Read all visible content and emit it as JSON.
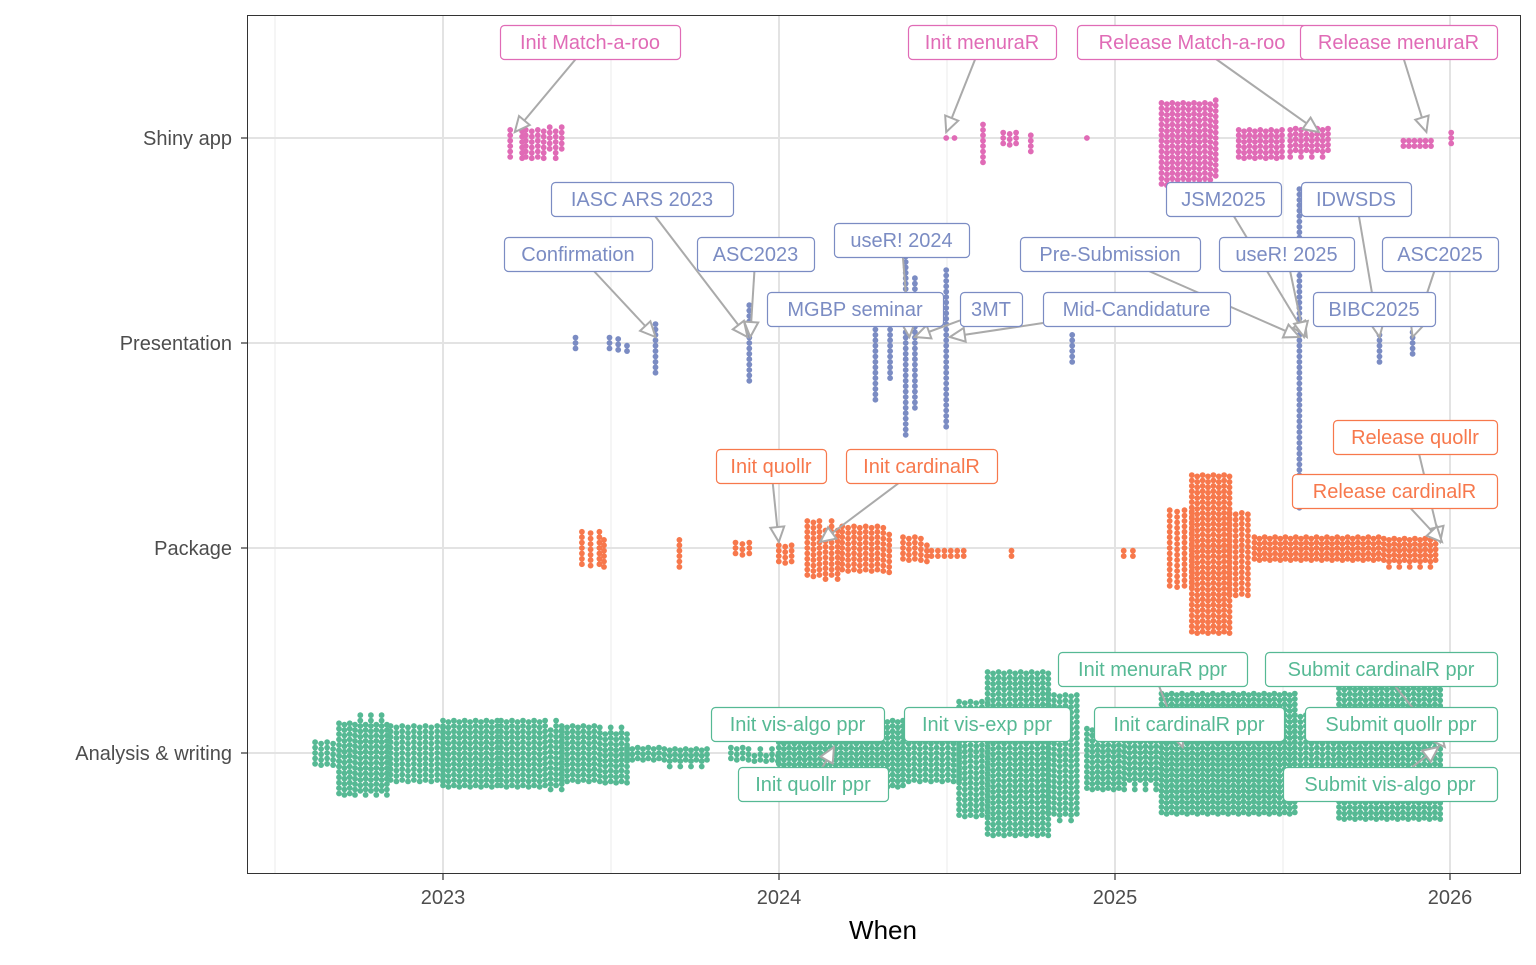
{
  "chart_data": {
    "type": "scatter",
    "subtype": "beeswarm",
    "title": "",
    "xlabel": "When",
    "ylabel": "",
    "x_ticks": [
      "2023",
      "2024",
      "2025",
      "2026"
    ],
    "xlim": [
      "2022-06-15",
      "2026-02-20"
    ],
    "grid": true,
    "legend": "none",
    "categories": [
      "Shiny app",
      "Presentation",
      "Package",
      "Analysis & writing"
    ],
    "colors": {
      "Shiny app": "#E06BB6",
      "Presentation": "#7B8CC3",
      "Package": "#F7784C",
      "Analysis & writing": "#56B994"
    },
    "series": [
      {
        "category": "Shiny app",
        "clusters": [
          {
            "from": "2023-03-15",
            "to": "2023-03-28",
            "count": 12
          },
          {
            "from": "2023-04-01",
            "to": "2023-05-10",
            "count": 40
          },
          {
            "from": "2024-07-01",
            "to": "2024-07-01",
            "count": 1
          },
          {
            "from": "2024-07-10",
            "to": "2024-07-10",
            "count": 1
          },
          {
            "from": "2024-08-10",
            "to": "2024-08-10",
            "count": 8
          },
          {
            "from": "2024-09-01",
            "to": "2024-09-15",
            "count": 9
          },
          {
            "from": "2024-10-01",
            "to": "2024-10-01",
            "count": 4
          },
          {
            "from": "2024-12-01",
            "to": "2024-12-01",
            "count": 1
          },
          {
            "from": "2025-02-20",
            "to": "2025-04-20",
            "count": 175
          },
          {
            "from": "2025-05-15",
            "to": "2025-07-01",
            "count": 54
          },
          {
            "from": "2025-07-10",
            "to": "2025-08-20",
            "count": 44
          },
          {
            "from": "2025-11-10",
            "to": "2025-12-10",
            "count": 12
          },
          {
            "from": "2026-01-01",
            "to": "2026-01-03",
            "count": 3
          }
        ]
      },
      {
        "category": "Presentation",
        "clusters": [
          {
            "from": "2023-05-25",
            "to": "2023-05-25",
            "count": 3
          },
          {
            "from": "2023-07-01",
            "to": "2023-07-20",
            "count": 8
          },
          {
            "from": "2023-08-20",
            "to": "2023-08-24",
            "count": 10
          },
          {
            "from": "2023-11-30",
            "to": "2023-12-02",
            "count": 15
          },
          {
            "from": "2024-04-15",
            "to": "2024-04-15",
            "count": 20
          },
          {
            "from": "2024-05-01",
            "to": "2024-05-01",
            "count": 12
          },
          {
            "from": "2024-05-18",
            "to": "2024-05-22",
            "count": 35
          },
          {
            "from": "2024-05-28",
            "to": "2024-05-30",
            "count": 25
          },
          {
            "from": "2024-07-01",
            "to": "2024-07-03",
            "count": 30
          },
          {
            "from": "2024-11-15",
            "to": "2024-11-15",
            "count": 6
          },
          {
            "from": "2025-07-20",
            "to": "2025-07-28",
            "count": 60
          },
          {
            "from": "2025-10-15",
            "to": "2025-10-15",
            "count": 6
          },
          {
            "from": "2025-11-20",
            "to": "2025-11-20",
            "count": 5
          }
        ]
      },
      {
        "category": "Package",
        "clusters": [
          {
            "from": "2023-06-01",
            "to": "2023-06-20",
            "count": 21
          },
          {
            "from": "2023-06-25",
            "to": "2023-06-28",
            "count": 6
          },
          {
            "from": "2023-09-15",
            "to": "2023-09-20",
            "count": 6
          },
          {
            "from": "2023-11-15",
            "to": "2023-11-30",
            "count": 9
          },
          {
            "from": "2024-01-01",
            "to": "2024-01-15",
            "count": 12
          },
          {
            "from": "2024-02-01",
            "to": "2024-03-05",
            "count": 64
          },
          {
            "from": "2024-03-10",
            "to": "2024-04-30",
            "count": 80
          },
          {
            "from": "2024-05-15",
            "to": "2024-06-10",
            "count": 24
          },
          {
            "from": "2024-06-15",
            "to": "2024-07-20",
            "count": 12
          },
          {
            "from": "2024-09-10",
            "to": "2024-09-10",
            "count": 2
          },
          {
            "from": "2025-01-10",
            "to": "2025-01-20",
            "count": 4
          },
          {
            "from": "2025-03-01",
            "to": "2025-03-25",
            "count": 60
          },
          {
            "from": "2025-03-25",
            "to": "2025-05-05",
            "count": 240
          },
          {
            "from": "2025-05-05",
            "to": "2025-05-25",
            "count": 64
          },
          {
            "from": "2025-06-01",
            "to": "2025-12-15",
            "count": 185
          }
        ]
      },
      {
        "category": "Analysis & writing",
        "clusters": [
          {
            "from": "2022-08-15",
            "to": "2022-09-10",
            "count": 24
          },
          {
            "from": "2022-09-10",
            "to": "2022-11-01",
            "count": 143
          },
          {
            "from": "2022-11-05",
            "to": "2023-01-01",
            "count": 110
          },
          {
            "from": "2023-01-01",
            "to": "2023-03-01",
            "count": 143
          },
          {
            "from": "2023-03-05",
            "to": "2023-05-10",
            "count": 154
          },
          {
            "from": "2023-05-10",
            "to": "2023-07-20",
            "count": 140
          },
          {
            "from": "2023-07-20",
            "to": "2023-10-15",
            "count": 52
          },
          {
            "from": "2023-11-10",
            "to": "2023-12-31",
            "count": 24
          },
          {
            "from": "2024-01-01",
            "to": "2024-05-15",
            "count": 325
          },
          {
            "from": "2024-05-15",
            "to": "2024-07-15",
            "count": 121
          },
          {
            "from": "2024-07-15",
            "to": "2024-08-15",
            "count": 132
          },
          {
            "from": "2024-08-15",
            "to": "2024-10-20",
            "count": 372
          },
          {
            "from": "2024-10-20",
            "to": "2024-11-20",
            "count": 140
          },
          {
            "from": "2024-12-01",
            "to": "2025-02-20",
            "count": 176
          },
          {
            "from": "2025-02-20",
            "to": "2025-07-15",
            "count": 621
          },
          {
            "from": "2025-07-15",
            "to": "2025-09-01",
            "count": 135
          },
          {
            "from": "2025-09-01",
            "to": "2025-12-20",
            "count": 500
          }
        ]
      }
    ],
    "annotations": [
      {
        "category": "Shiny app",
        "label": "Init Match-a-roo",
        "date": "2023-03-20"
      },
      {
        "category": "Shiny app",
        "label": "Init menuraR",
        "date": "2024-07-01"
      },
      {
        "category": "Shiny app",
        "label": "Release Match-a-roo",
        "date": "2025-08-10"
      },
      {
        "category": "Shiny app",
        "label": "Release menuraR",
        "date": "2025-12-05"
      },
      {
        "category": "Presentation",
        "label": "IASC ARS 2023",
        "date": "2023-11-28"
      },
      {
        "category": "Presentation",
        "label": "Confirmation",
        "date": "2023-08-20"
      },
      {
        "category": "Presentation",
        "label": "ASC2023",
        "date": "2023-12-01"
      },
      {
        "category": "Presentation",
        "label": "useR! 2024",
        "date": "2024-05-22"
      },
      {
        "category": "Presentation",
        "label": "MGBP seminar",
        "date": "2024-04-15"
      },
      {
        "category": "Presentation",
        "label": "3MT",
        "date": "2024-05-28"
      },
      {
        "category": "Presentation",
        "label": "Mid-Candidature",
        "date": "2024-07-05"
      },
      {
        "category": "Presentation",
        "label": "JSM2025",
        "date": "2025-07-28"
      },
      {
        "category": "Presentation",
        "label": "IDWSDS",
        "date": "2025-10-15"
      },
      {
        "category": "Presentation",
        "label": "Pre-Submission",
        "date": "2025-07-20"
      },
      {
        "category": "Presentation",
        "label": "useR! 2025",
        "date": "2025-07-25"
      },
      {
        "category": "Presentation",
        "label": "ASC2025",
        "date": "2025-11-20"
      },
      {
        "category": "Presentation",
        "label": "BIBC2025",
        "date": "2025-11-10"
      },
      {
        "category": "Package",
        "label": "Init quollr",
        "date": "2024-01-01"
      },
      {
        "category": "Package",
        "label": "Init cardinalR",
        "date": "2024-02-15"
      },
      {
        "category": "Package",
        "label": "Release quollr",
        "date": "2025-12-20"
      },
      {
        "category": "Package",
        "label": "Release cardinalR",
        "date": "2025-12-22"
      },
      {
        "category": "Analysis & writing",
        "label": "Init menuraR ppr",
        "date": "2025-03-15"
      },
      {
        "category": "Analysis & writing",
        "label": "Submit cardinalR ppr",
        "date": "2025-12-25"
      },
      {
        "category": "Analysis & writing",
        "label": "Init vis-algo ppr",
        "date": "2024-03-20"
      },
      {
        "category": "Analysis & writing",
        "label": "Init vis-exp ppr",
        "date": "2024-08-01"
      },
      {
        "category": "Analysis & writing",
        "label": "Init cardinalR ppr",
        "date": "2025-03-20"
      },
      {
        "category": "Analysis & writing",
        "label": "Submit quollr ppr",
        "date": "2025-12-20"
      },
      {
        "category": "Analysis & writing",
        "label": "Init quollr ppr",
        "date": "2024-03-01"
      },
      {
        "category": "Analysis & writing",
        "label": "Submit vis-algo ppr",
        "date": "2025-12-18"
      }
    ]
  }
}
